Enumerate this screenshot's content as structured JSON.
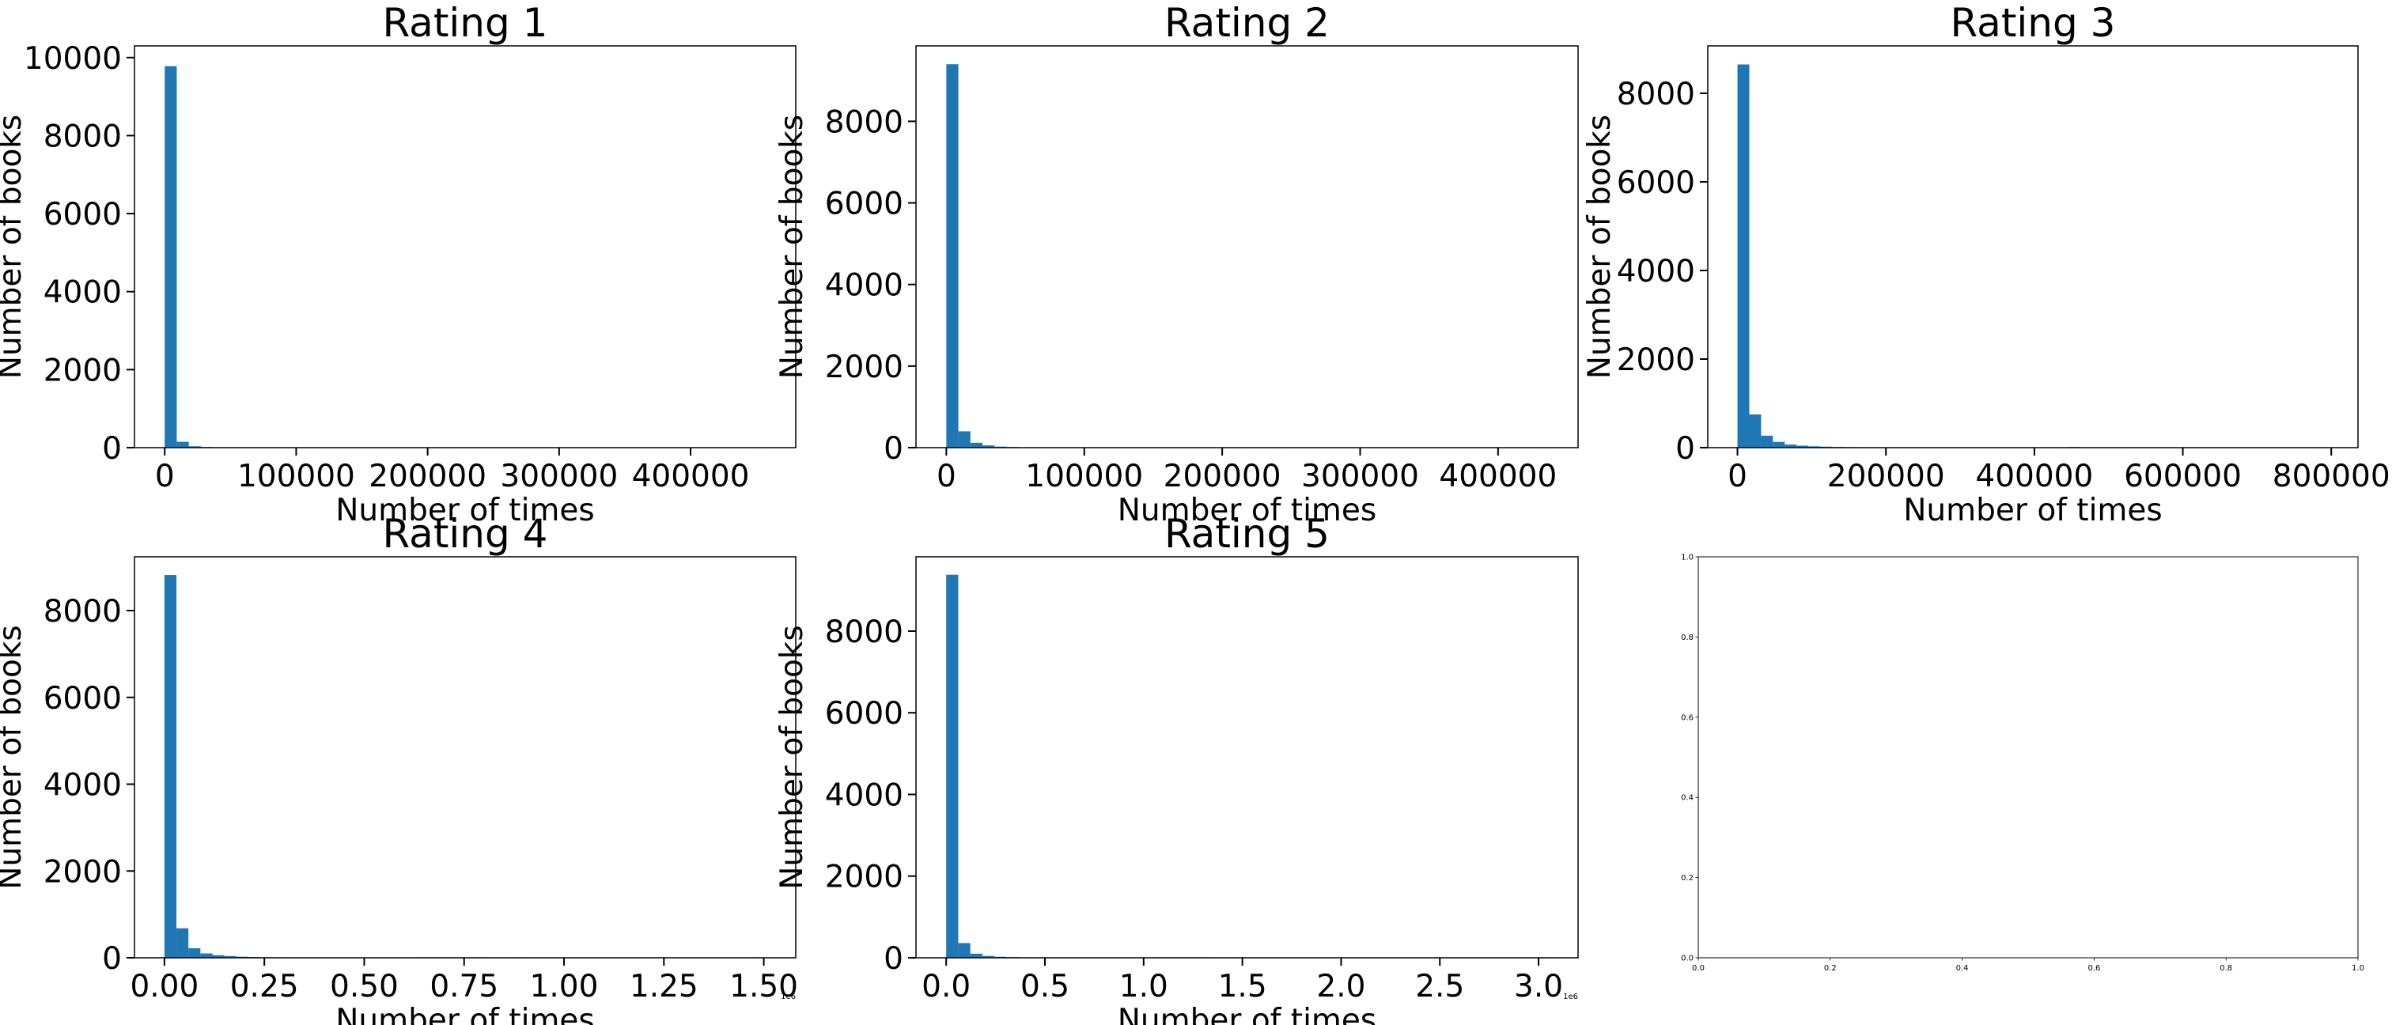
{
  "chart_data": [
    {
      "type": "bar",
      "title": "Rating 1",
      "xlabel": "Number of times",
      "ylabel": "Number of books",
      "xlim": [
        -23000,
        480000
      ],
      "ylim": [
        0,
        10300
      ],
      "x_ticks": [
        0,
        100000,
        200000,
        300000,
        400000
      ],
      "x_tick_labels": [
        "0",
        "100000",
        "200000",
        "300000",
        "400000"
      ],
      "y_ticks": [
        0,
        2000,
        4000,
        6000,
        8000,
        10000
      ],
      "y_tick_labels": [
        "0",
        "2000",
        "4000",
        "6000",
        "8000",
        "10000"
      ],
      "bin_width": 9148,
      "bin_start": 0,
      "values": [
        9780,
        150,
        35,
        15,
        8,
        6,
        4,
        3,
        3,
        2,
        5,
        2,
        2,
        1,
        1,
        1,
        1,
        1,
        1,
        1,
        1,
        0,
        0,
        1,
        0,
        0,
        0,
        0,
        0,
        0,
        1,
        0,
        0,
        0,
        0,
        0,
        0,
        0,
        0,
        0,
        0,
        0,
        0,
        0,
        0,
        0,
        0,
        0,
        0,
        1
      ],
      "color": "#1f77b4",
      "grid": false
    },
    {
      "type": "bar",
      "title": "Rating 2",
      "xlabel": "Number of times",
      "ylabel": "Number of books",
      "xlim": [
        -22000,
        458000
      ],
      "ylim": [
        0,
        9850
      ],
      "x_ticks": [
        0,
        100000,
        200000,
        300000,
        400000
      ],
      "x_tick_labels": [
        "0",
        "100000",
        "200000",
        "300000",
        "400000"
      ],
      "y_ticks": [
        0,
        2000,
        4000,
        6000,
        8000
      ],
      "y_tick_labels": [
        "0",
        "2000",
        "4000",
        "6000",
        "8000"
      ],
      "bin_width": 8728,
      "bin_start": 0,
      "values": [
        9400,
        400,
        120,
        55,
        25,
        15,
        10,
        8,
        6,
        4,
        3,
        3,
        2,
        2,
        2,
        2,
        3,
        5,
        1,
        1,
        1,
        1,
        0,
        0,
        1,
        0,
        0,
        1,
        0,
        0,
        0,
        0,
        0,
        0,
        0,
        0,
        0,
        0,
        0,
        0,
        0,
        0,
        0,
        0,
        0,
        0,
        0,
        0,
        0,
        1
      ],
      "color": "#1f77b4",
      "grid": false
    },
    {
      "type": "bar",
      "title": "Rating 3",
      "xlabel": "Number of times",
      "ylabel": "Number of books",
      "xlim": [
        -40000,
        836000
      ],
      "ylim": [
        0,
        9070
      ],
      "x_ticks": [
        0,
        200000,
        400000,
        600000,
        800000
      ],
      "x_tick_labels": [
        "0",
        "200000",
        "400000",
        "600000",
        "800000"
      ],
      "y_ticks": [
        0,
        2000,
        4000,
        6000,
        8000
      ],
      "y_tick_labels": [
        "0",
        "2000",
        "4000",
        "6000",
        "8000"
      ],
      "bin_width": 15924,
      "bin_start": 0,
      "values": [
        8650,
        750,
        270,
        130,
        70,
        45,
        30,
        22,
        15,
        12,
        10,
        8,
        7,
        6,
        5,
        5,
        4,
        4,
        3,
        3,
        3,
        3,
        2,
        2,
        2,
        5,
        2,
        1,
        15,
        1,
        1,
        1,
        1,
        0,
        0,
        0,
        0,
        0,
        0,
        0,
        0,
        0,
        0,
        0,
        0,
        0,
        0,
        0,
        0,
        1
      ],
      "color": "#1f77b4",
      "grid": false
    },
    {
      "type": "bar",
      "title": "Rating 4",
      "xlabel": "Number of times",
      "ylabel": "Number of books",
      "xlim": [
        -0.075,
        1.58
      ],
      "ylim": [
        0,
        9240
      ],
      "x_ticks": [
        0,
        0.25,
        0.5,
        0.75,
        1.0,
        1.25,
        1.5
      ],
      "x_tick_labels": [
        "0.00",
        "0.25",
        "0.50",
        "0.75",
        "1.00",
        "1.25",
        "1.50"
      ],
      "x_offset_label": "1e6",
      "y_ticks": [
        0,
        2000,
        4000,
        6000,
        8000
      ],
      "y_tick_labels": [
        "0",
        "2000",
        "4000",
        "6000",
        "8000"
      ],
      "bin_width": 0.03,
      "bin_start": 0,
      "values": [
        8820,
        680,
        220,
        100,
        60,
        40,
        25,
        18,
        12,
        10,
        8,
        6,
        5,
        4,
        4,
        3,
        3,
        2,
        2,
        2,
        2,
        1,
        1,
        1,
        1,
        1,
        1,
        0,
        0,
        1,
        0,
        0,
        0,
        0,
        0,
        0,
        0,
        0,
        0,
        0,
        0,
        0,
        0,
        0,
        0,
        0,
        0,
        0,
        0,
        1
      ],
      "color": "#1f77b4",
      "grid": false
    },
    {
      "type": "bar",
      "title": "Rating 5",
      "xlabel": "Number of times",
      "ylabel": "Number of books",
      "xlim": [
        -0.153,
        3.2
      ],
      "ylim": [
        0,
        9820
      ],
      "x_ticks": [
        0,
        0.5,
        1.0,
        1.5,
        2.0,
        2.5,
        3.0
      ],
      "x_tick_labels": [
        "0.0",
        "0.5",
        "1.0",
        "1.5",
        "2.0",
        "2.5",
        "3.0"
      ],
      "x_offset_label": "1e6",
      "y_ticks": [
        0,
        2000,
        4000,
        6000,
        8000
      ],
      "y_tick_labels": [
        "0",
        "2000",
        "4000",
        "6000",
        "8000"
      ],
      "bin_width": 0.061,
      "bin_start": 0,
      "values": [
        9380,
        360,
        100,
        45,
        25,
        15,
        10,
        8,
        6,
        4,
        3,
        3,
        2,
        2,
        2,
        2,
        1,
        1,
        1,
        1,
        1,
        1,
        0,
        0,
        1,
        0,
        0,
        0,
        0,
        0,
        0,
        0,
        0,
        0,
        0,
        0,
        0,
        0,
        0,
        0,
        0,
        0,
        0,
        0,
        0,
        0,
        0,
        0,
        0,
        1
      ],
      "color": "#1f77b4",
      "grid": false
    },
    {
      "type": "scatter",
      "title": "",
      "xlabel": "",
      "ylabel": "",
      "xlim": [
        0,
        1
      ],
      "ylim": [
        0,
        1
      ],
      "x_ticks": [
        0,
        0.2,
        0.4,
        0.6,
        0.8,
        1.0
      ],
      "x_tick_labels": [
        "0.0",
        "0.2",
        "0.4",
        "0.6",
        "0.8",
        "1.0"
      ],
      "y_ticks": [
        0,
        0.2,
        0.4,
        0.6,
        0.8,
        1.0
      ],
      "y_tick_labels": [
        "0.0",
        "0.2",
        "0.4",
        "0.6",
        "0.8",
        "1.0"
      ],
      "values": [],
      "grid": false
    }
  ]
}
